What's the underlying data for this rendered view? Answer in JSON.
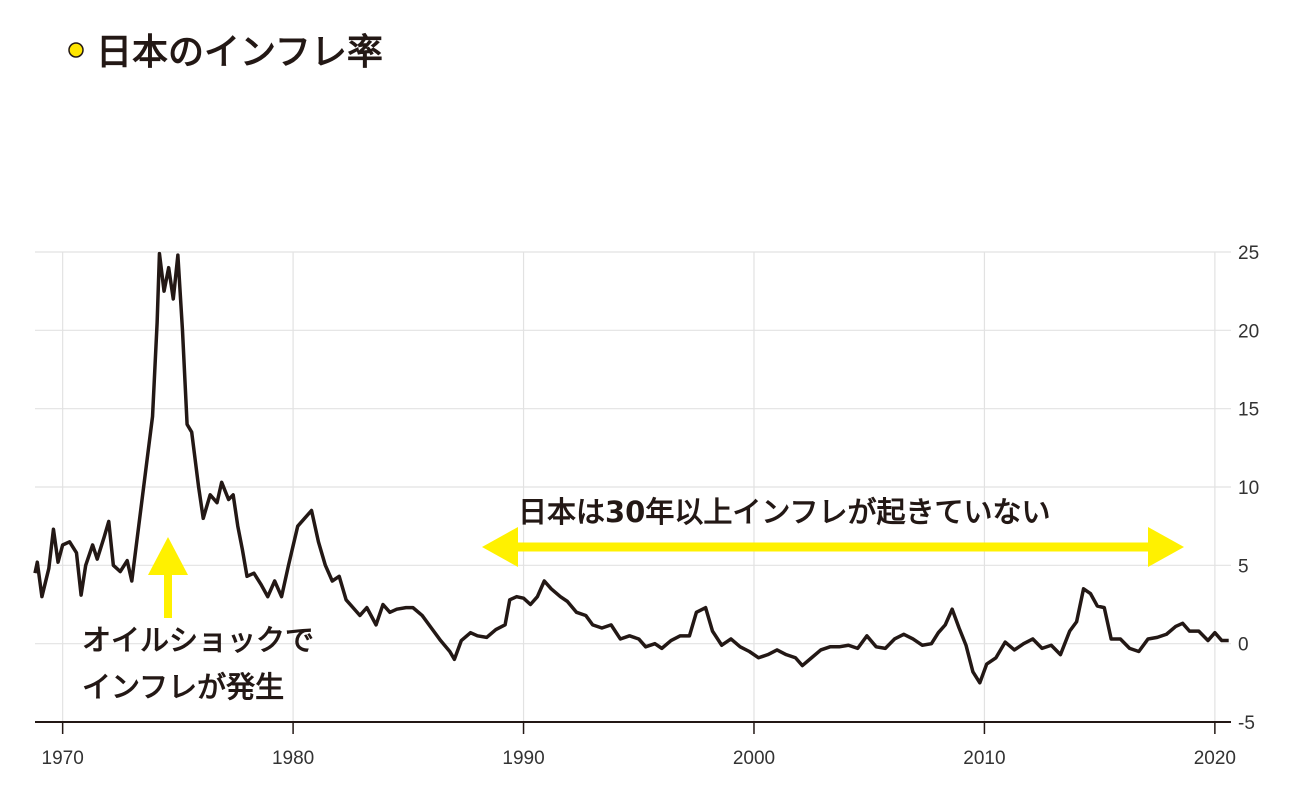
{
  "chart_data": {
    "type": "line",
    "title": "日本のインフレ率",
    "annotations": [
      "日本は30年以上インフレが起きていない",
      "オイルショックで",
      "インフレが発生"
    ],
    "color": "#231815",
    "grid": true,
    "xlim": [
      1968.8,
      2020.7
    ],
    "xticks": [
      1970,
      1980,
      1990,
      2000,
      2010,
      2020
    ],
    "ylim": [
      -5,
      25
    ],
    "yticks": [
      -5,
      0,
      5,
      10,
      15,
      20,
      25
    ],
    "x": [
      1968.8,
      1968.9,
      1969.1,
      1969.4,
      1969.6,
      1969.8,
      1970.0,
      1970.3,
      1970.6,
      1970.8,
      1971.0,
      1971.3,
      1971.5,
      1971.8,
      1972.0,
      1972.2,
      1972.5,
      1972.8,
      1973.0,
      1973.3,
      1973.6,
      1973.9,
      1974.1,
      1974.2,
      1974.4,
      1974.6,
      1974.8,
      1975.0,
      1975.2,
      1975.4,
      1975.6,
      1975.9,
      1976.1,
      1976.4,
      1976.7,
      1976.9,
      1977.2,
      1977.4,
      1977.6,
      1977.8,
      1978.0,
      1978.3,
      1978.6,
      1978.9,
      1979.2,
      1979.5,
      1979.8,
      1980.2,
      1980.5,
      1980.8,
      1981.1,
      1981.4,
      1981.7,
      1982.0,
      1982.3,
      1982.6,
      1982.9,
      1983.2,
      1983.6,
      1983.9,
      1984.2,
      1984.5,
      1984.9,
      1985.2,
      1985.6,
      1986.0,
      1986.4,
      1986.8,
      1987.0,
      1987.3,
      1987.7,
      1988.0,
      1988.4,
      1988.8,
      1989.2,
      1989.4,
      1989.7,
      1990.0,
      1990.3,
      1990.6,
      1990.9,
      1991.2,
      1991.6,
      1991.9,
      1992.3,
      1992.7,
      1993.0,
      1993.4,
      1993.8,
      1994.2,
      1994.6,
      1995.0,
      1995.3,
      1995.7,
      1996.0,
      1996.4,
      1996.8,
      1997.2,
      1997.5,
      1997.9,
      1998.2,
      1998.6,
      1999.0,
      1999.4,
      1999.8,
      2000.2,
      2000.6,
      2001.0,
      2001.4,
      2001.8,
      2002.1,
      2002.5,
      2002.9,
      2003.3,
      2003.7,
      2004.1,
      2004.5,
      2004.9,
      2005.3,
      2005.7,
      2006.1,
      2006.5,
      2006.9,
      2007.3,
      2007.7,
      2008.0,
      2008.3,
      2008.6,
      2008.9,
      2009.2,
      2009.5,
      2009.8,
      2010.1,
      2010.5,
      2010.9,
      2011.3,
      2011.7,
      2012.1,
      2012.5,
      2012.9,
      2013.3,
      2013.7,
      2014.0,
      2014.3,
      2014.6,
      2014.9,
      2015.2,
      2015.5,
      2015.9,
      2016.3,
      2016.7,
      2017.1,
      2017.5,
      2017.9,
      2018.3,
      2018.6,
      2018.9,
      2019.3,
      2019.7,
      2020.0,
      2020.3,
      2020.6
    ],
    "values": [
      4.5,
      5.2,
      3.0,
      4.8,
      7.3,
      5.2,
      6.3,
      6.5,
      5.8,
      3.1,
      5.0,
      6.3,
      5.4,
      6.8,
      7.8,
      5.0,
      4.6,
      5.3,
      4.0,
      7.5,
      11.0,
      14.5,
      20.5,
      24.9,
      22.5,
      24.0,
      22.0,
      24.8,
      20.0,
      14.0,
      13.5,
      10.0,
      8.0,
      9.5,
      9.0,
      10.3,
      9.2,
      9.5,
      7.5,
      6.0,
      4.3,
      4.5,
      3.8,
      3.0,
      4.0,
      3.0,
      5.0,
      7.5,
      8.0,
      8.5,
      6.5,
      5.0,
      4.0,
      4.3,
      2.8,
      2.3,
      1.8,
      2.3,
      1.2,
      2.5,
      2.0,
      2.2,
      2.3,
      2.3,
      1.8,
      1.0,
      0.2,
      -0.5,
      -1.0,
      0.2,
      0.7,
      0.5,
      0.4,
      0.9,
      1.2,
      2.8,
      3.0,
      2.9,
      2.5,
      3.0,
      4.0,
      3.5,
      3.0,
      2.7,
      2.0,
      1.8,
      1.2,
      1.0,
      1.2,
      0.3,
      0.5,
      0.3,
      -0.2,
      0.0,
      -0.3,
      0.2,
      0.5,
      0.5,
      2.0,
      2.3,
      0.8,
      -0.1,
      0.3,
      -0.2,
      -0.5,
      -0.9,
      -0.7,
      -0.4,
      -0.7,
      -0.9,
      -1.4,
      -0.9,
      -0.4,
      -0.2,
      -0.2,
      -0.1,
      -0.3,
      0.5,
      -0.2,
      -0.3,
      0.3,
      0.6,
      0.3,
      -0.1,
      0.0,
      0.7,
      1.2,
      2.2,
      1.0,
      -0.1,
      -1.8,
      -2.5,
      -1.3,
      -0.9,
      0.1,
      -0.4,
      0.0,
      0.3,
      -0.3,
      -0.1,
      -0.7,
      0.8,
      1.4,
      3.5,
      3.2,
      2.4,
      2.3,
      0.3,
      0.3,
      -0.3,
      -0.5,
      0.3,
      0.4,
      0.6,
      1.1,
      1.3,
      0.8,
      0.8,
      0.2,
      0.7,
      0.2,
      0.2
    ]
  }
}
